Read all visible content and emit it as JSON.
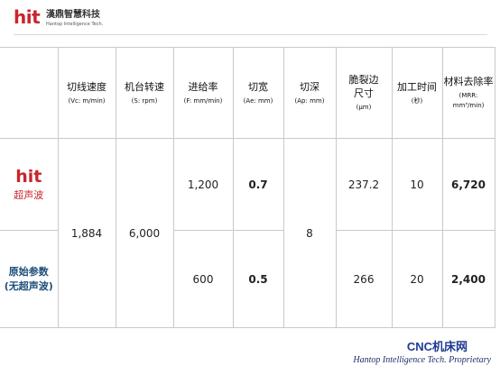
{
  "logo": {
    "mark": "hit",
    "name": "漢鼎智慧科技",
    "subtitle": "Hantop Intelligence Tech."
  },
  "table": {
    "headers": [
      {
        "main": "切线速度",
        "unit": "(Vc: m/min)"
      },
      {
        "main": "机台转速",
        "unit": "(S: rpm)"
      },
      {
        "main": "进给率",
        "unit": "(F: mm/min)"
      },
      {
        "main": "切宽",
        "unit": "(Ae: mm)"
      },
      {
        "main": "切深",
        "unit": "(Ap: mm)"
      },
      {
        "main": "脆裂边\n尺寸",
        "unit": "(μm)"
      },
      {
        "main": "加工时间",
        "unit": "(秒)"
      },
      {
        "main": "材料去除率",
        "unit": "(MRR: mm³/min)"
      }
    ],
    "rows": [
      {
        "label_mark": "hit",
        "label": "超声波",
        "feed": "1,200",
        "width": "0.7",
        "chip": "237.2",
        "time": "10",
        "mrr": "6,720"
      },
      {
        "label": "原始参数\n(无超声波)",
        "feed": "600",
        "width": "0.5",
        "chip": "266",
        "time": "20",
        "mrr": "2,400"
      }
    ],
    "shared": {
      "speed": "1,884",
      "rpm": "6,000",
      "depth": "8"
    }
  },
  "footer": {
    "brand": "CNC机床网",
    "proprietary": "Hantop Intelligence Tech. Proprietary"
  },
  "colors": {
    "brand_red": "#c8262e",
    "value_red": "#c0392b",
    "value_blue": "#1f4e79",
    "footer_blue": "#1f3a93"
  }
}
